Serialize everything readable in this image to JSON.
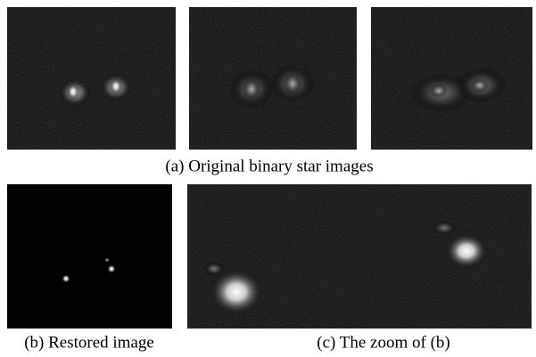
{
  "captions": {
    "a": "(a) Original binary star images",
    "b": "(b) Restored image",
    "c": "(c) The zoom of (b)"
  }
}
